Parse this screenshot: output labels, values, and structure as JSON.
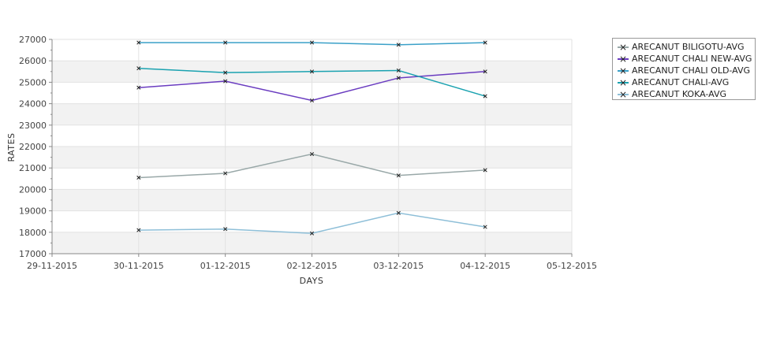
{
  "chart_data": {
    "type": "line",
    "xlabel": "DAYS",
    "ylabel": "RATES",
    "x_ticks": [
      "29-11-2015",
      "30-11-2015",
      "01-12-2015",
      "02-12-2015",
      "03-12-2015",
      "04-12-2015",
      "05-12-2015"
    ],
    "x": [
      "30-11-2015",
      "01-12-2015",
      "02-12-2015",
      "03-12-2015",
      "04-12-2015"
    ],
    "xlim": [
      "29-11-2015",
      "05-12-2015"
    ],
    "ylim": [
      17000,
      27000
    ],
    "y_ticks": [
      17000,
      18000,
      19000,
      20000,
      21000,
      22000,
      23000,
      24000,
      25000,
      26000,
      27000
    ],
    "grid": true,
    "legend_position": "top-right",
    "series": [
      {
        "name": "ARECANUT BILIGOTU-AVG",
        "color": "#99a8a8",
        "values": [
          20550,
          20750,
          21650,
          20650,
          20900
        ]
      },
      {
        "name": "ARECANUT CHALI NEW-AVG",
        "color": "#6a3cc0",
        "values": [
          24750,
          25050,
          24150,
          25200,
          25500
        ]
      },
      {
        "name": "ARECANUT CHALI OLD-AVG",
        "color": "#3aa0c8",
        "values": [
          26850,
          26850,
          26850,
          26750,
          26850
        ]
      },
      {
        "name": "ARECANUT CHALI-AVG",
        "color": "#1aa2b0",
        "values": [
          25650,
          25450,
          25500,
          25550,
          24350
        ]
      },
      {
        "name": "ARECANUT KOKA-AVG",
        "color": "#8ebfd8",
        "values": [
          18100,
          18150,
          17950,
          18900,
          18250
        ]
      }
    ]
  }
}
